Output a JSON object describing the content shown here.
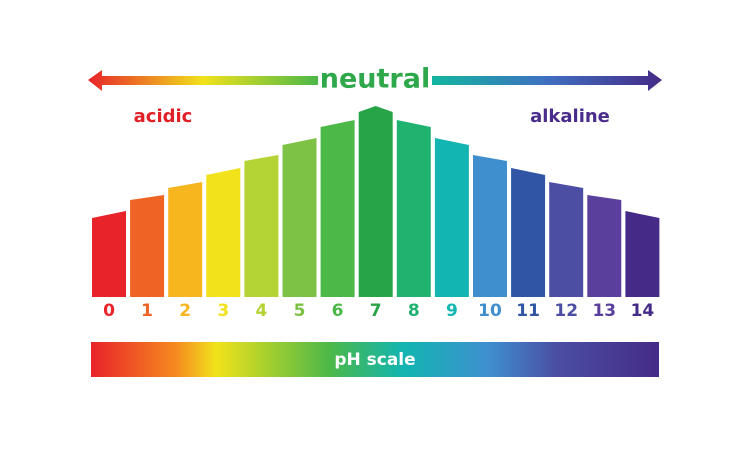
{
  "header": {
    "center_label": "neutral",
    "left_label": "acidic",
    "right_label": "alkaline"
  },
  "scale": {
    "ph_values": [
      0,
      1,
      2,
      3,
      4,
      5,
      6,
      7,
      8,
      9,
      10,
      11,
      12,
      13,
      14
    ]
  },
  "footer": {
    "label": "pH scale"
  }
}
